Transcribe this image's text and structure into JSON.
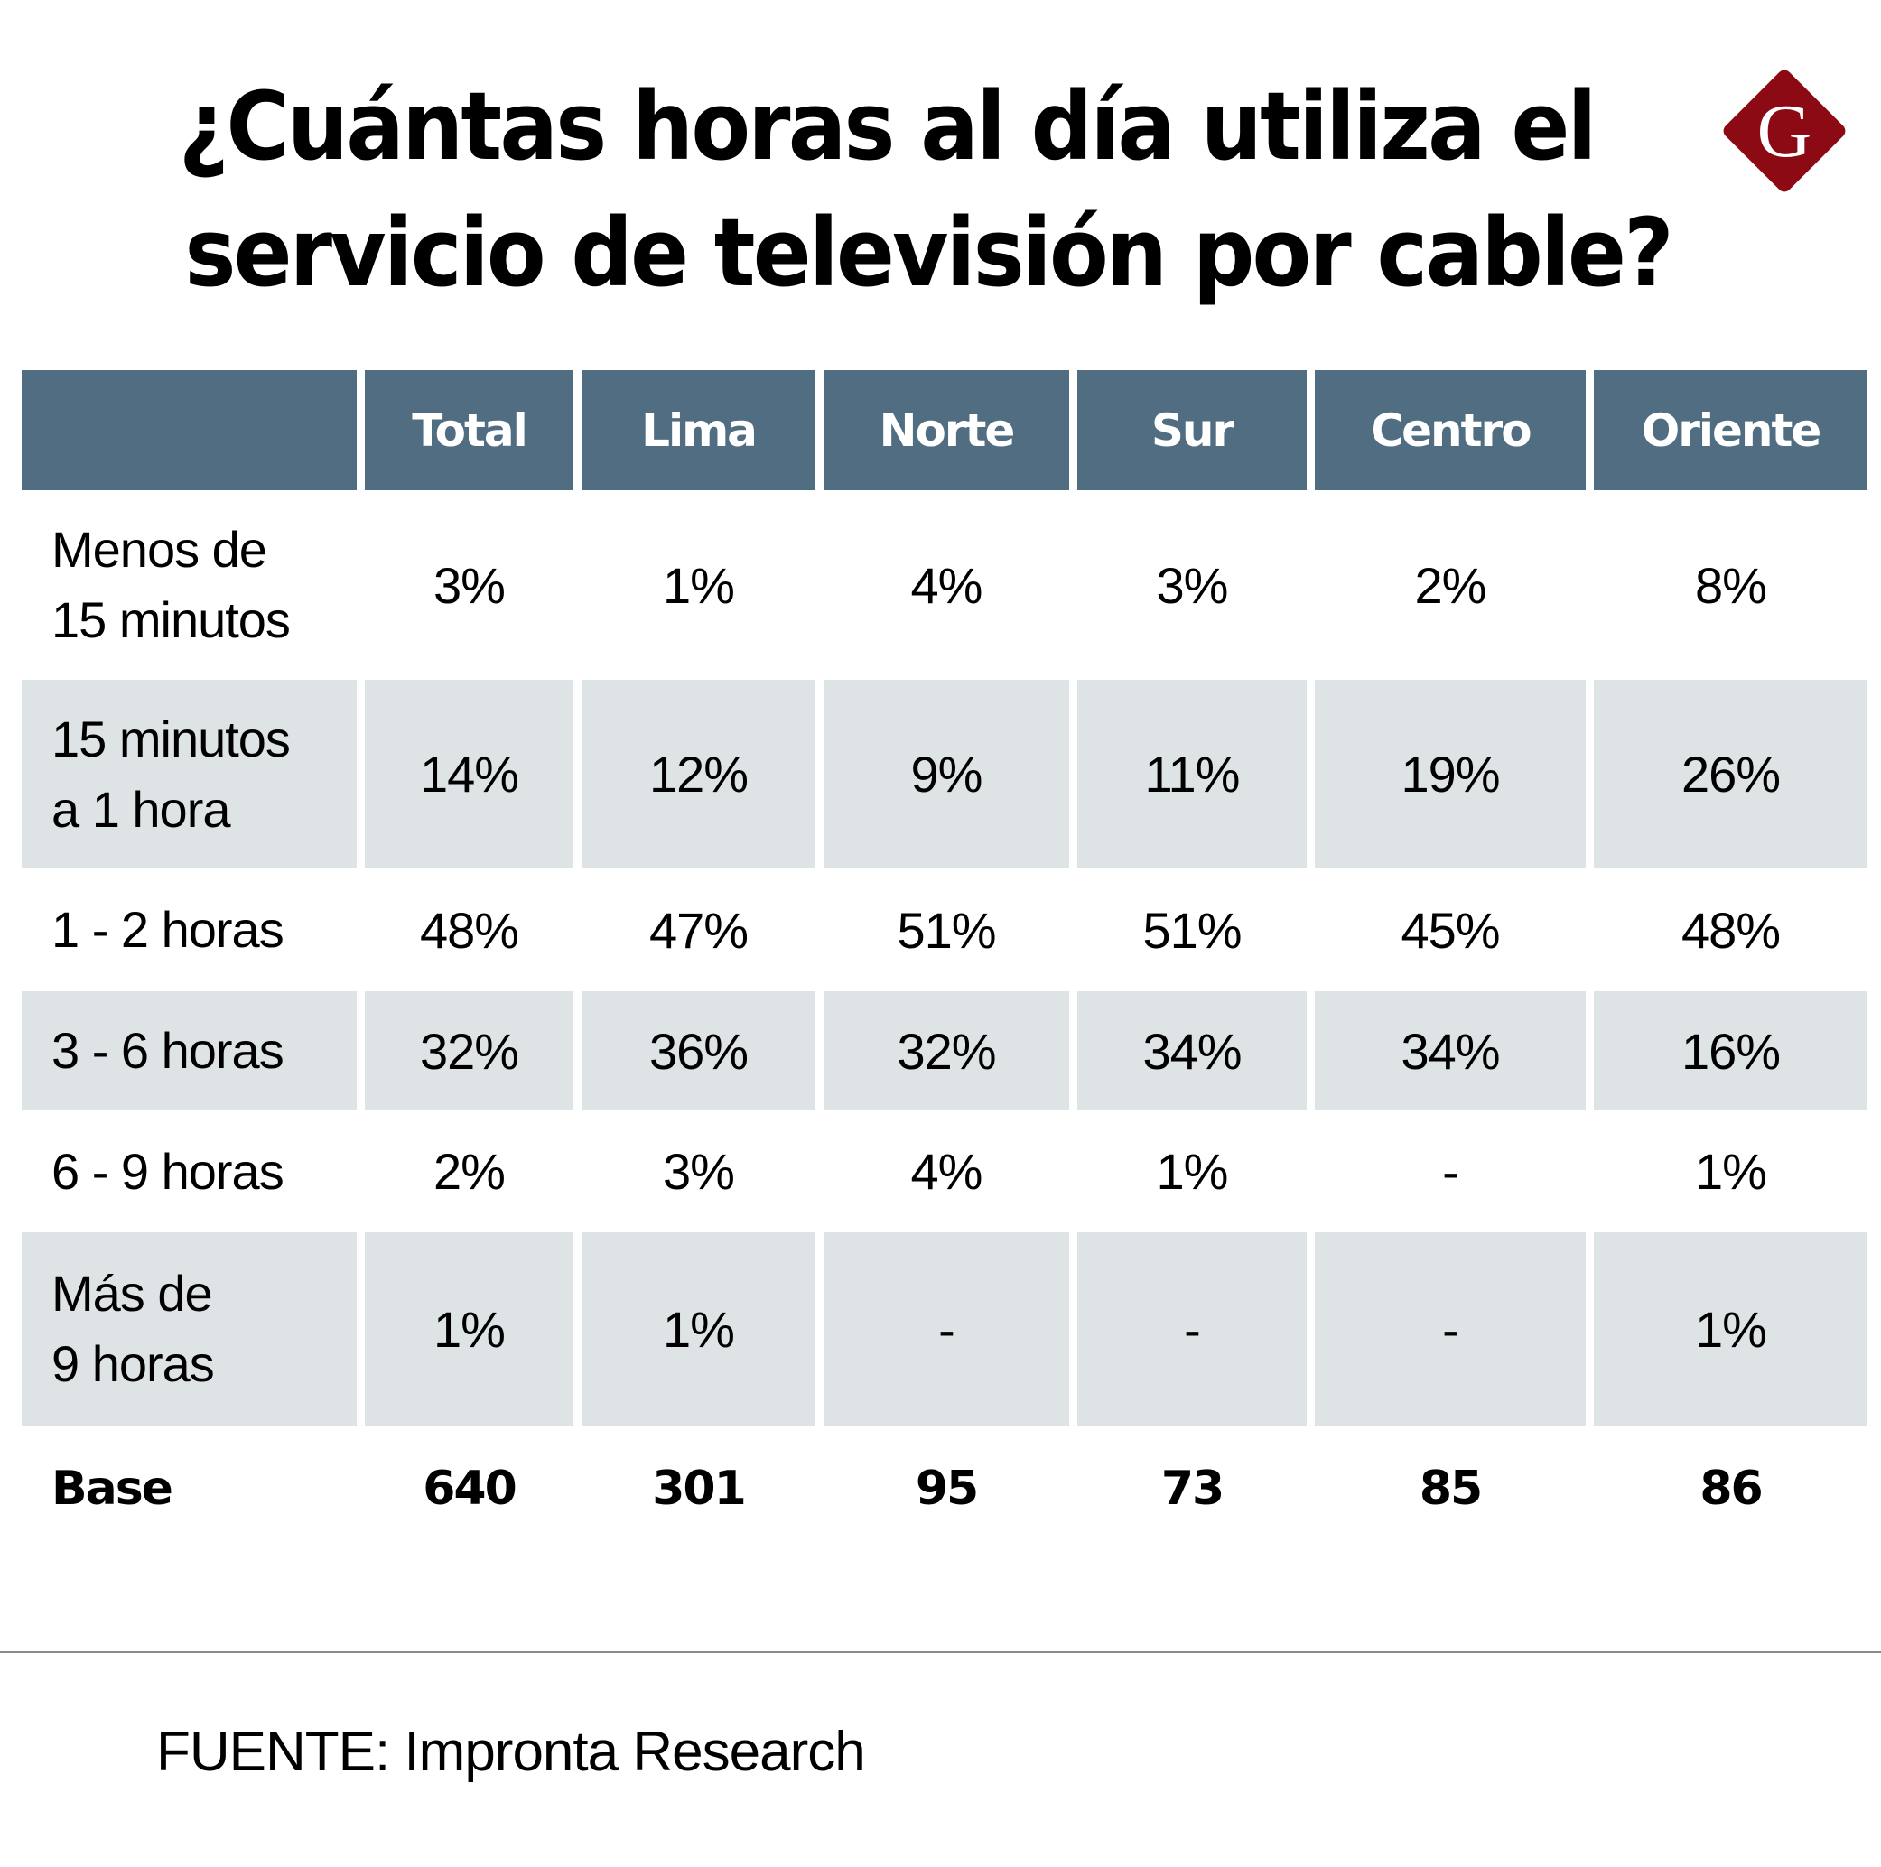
{
  "title": {
    "line1": "¿Cuántas horas al día utiliza el",
    "line2": "servicio de televisión por cable?"
  },
  "logo": {
    "letter": "G",
    "color": "#8b0a14",
    "icon": "gestion-logo-icon"
  },
  "colors": {
    "header_bg": "#516d82",
    "stripe_bg": "#dee3e6",
    "header_text": "#ffffff"
  },
  "chart_data": {
    "type": "table",
    "title": "¿Cuántas horas al día utiliza el servicio de televisión por cable?",
    "columns": [
      "",
      "Total",
      "Lima",
      "Norte",
      "Sur",
      "Centro",
      "Oriente"
    ],
    "rows": [
      {
        "label": [
          "Menos de",
          "15 minutos"
        ],
        "values": [
          "3%",
          "1%",
          "4%",
          "3%",
          "2%",
          "8%"
        ]
      },
      {
        "label": [
          "15 minutos",
          "a 1 hora"
        ],
        "values": [
          "14%",
          "12%",
          "9%",
          "11%",
          "19%",
          "26%"
        ]
      },
      {
        "label": [
          "1 - 2 horas"
        ],
        "values": [
          "48%",
          "47%",
          "51%",
          "51%",
          "45%",
          "48%"
        ]
      },
      {
        "label": [
          "3 - 6 horas"
        ],
        "values": [
          "32%",
          "36%",
          "32%",
          "34%",
          "34%",
          "16%"
        ]
      },
      {
        "label": [
          "6 - 9 horas"
        ],
        "values": [
          "2%",
          "3%",
          "4%",
          "1%",
          "-",
          "1%"
        ]
      },
      {
        "label": [
          "Más de",
          "9 horas"
        ],
        "values": [
          "1%",
          "1%",
          "-",
          "-",
          "-",
          "1%"
        ]
      }
    ],
    "base": {
      "label": "Base",
      "values": [
        "640",
        "301",
        "95",
        "73",
        "85",
        "86"
      ]
    }
  },
  "source": "FUENTE: Impronta Research"
}
